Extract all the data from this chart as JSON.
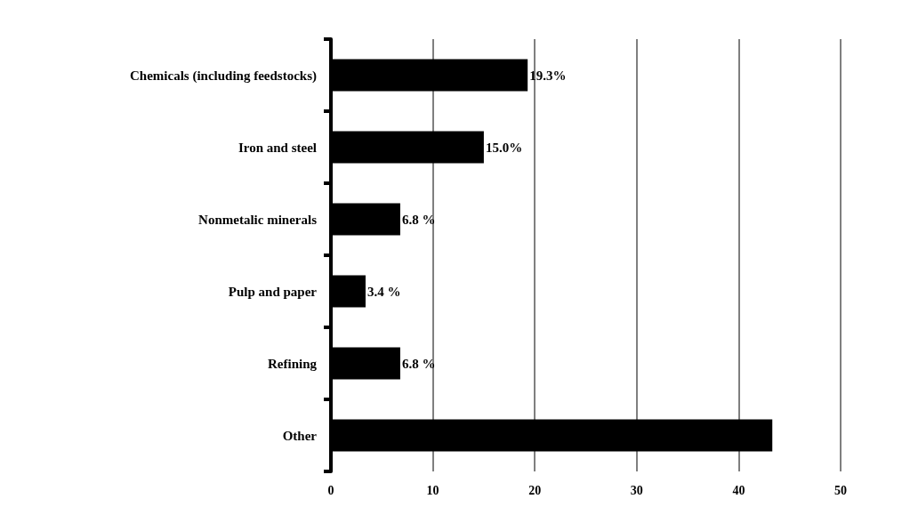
{
  "chart_data": {
    "type": "bar",
    "orientation": "horizontal",
    "categories": [
      "Chemicals (including feedstocks)",
      "Iron and steel",
      "Nonmetalic minerals",
      "Pulp and paper",
      "Refining",
      "Other"
    ],
    "values": [
      19.3,
      15.0,
      6.8,
      3.4,
      6.8,
      43.3
    ],
    "value_labels": [
      "19.3%",
      "15.0%",
      "6.8 %",
      "3.4 %",
      "6.8 %",
      null
    ],
    "color": "#000000",
    "xlim": [
      0,
      50
    ],
    "xticks": [
      0,
      10,
      20,
      30,
      40,
      50
    ],
    "grid": "x"
  }
}
